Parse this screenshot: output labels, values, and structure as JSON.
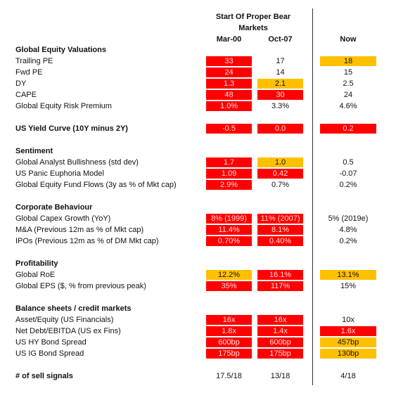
{
  "header": {
    "title": "Start Of Proper Bear Markets",
    "columns": [
      "Mar-00",
      "Oct-07",
      "Now"
    ]
  },
  "colors": {
    "red": "#ff0000",
    "amber": "#ffc000"
  },
  "sections": [
    {
      "title": "Global Equity Valuations",
      "rows": [
        {
          "label": "Trailing PE",
          "cells": [
            {
              "text": "33",
              "color": "red"
            },
            {
              "text": "17"
            },
            {
              "text": "18",
              "color": "amber"
            }
          ]
        },
        {
          "label": "Fwd PE",
          "cells": [
            {
              "text": "24",
              "color": "red"
            },
            {
              "text": "14"
            },
            {
              "text": "15"
            }
          ]
        },
        {
          "label": "DY",
          "cells": [
            {
              "text": "1.3",
              "color": "red"
            },
            {
              "text": "2.1",
              "color": "amber"
            },
            {
              "text": "2.5"
            }
          ]
        },
        {
          "label": "CAPE",
          "cells": [
            {
              "text": "48",
              "color": "red"
            },
            {
              "text": "30",
              "color": "red"
            },
            {
              "text": "24"
            }
          ]
        },
        {
          "label": "Global Equity Risk Premium",
          "cells": [
            {
              "text": "1.0%",
              "color": "red"
            },
            {
              "text": "3.3%"
            },
            {
              "text": "4.6%"
            }
          ]
        }
      ]
    },
    {
      "title": "US Yield Curve (10Y minus 2Y)",
      "cells": [
        {
          "text": "-0.5",
          "color": "red"
        },
        {
          "text": "0.0",
          "color": "red"
        },
        {
          "text": "0.2",
          "color": "red"
        }
      ]
    },
    {
      "title": "Sentiment",
      "rows": [
        {
          "label": "Global Analyst Bullishness (std dev)",
          "cells": [
            {
              "text": "1.7",
              "color": "red"
            },
            {
              "text": "1.0",
              "color": "amber"
            },
            {
              "text": "0.5"
            }
          ]
        },
        {
          "label": "US Panic Euphoria Model",
          "cells": [
            {
              "text": "1.09",
              "color": "red"
            },
            {
              "text": "0.42",
              "color": "red"
            },
            {
              "text": "-0.07"
            }
          ]
        },
        {
          "label": "Global Equity Fund Flows (3y as % of Mkt cap)",
          "cells": [
            {
              "text": "2.9%",
              "color": "red"
            },
            {
              "text": "0.7%"
            },
            {
              "text": "0.2%"
            }
          ]
        }
      ]
    },
    {
      "title": "Corporate Behaviour",
      "rows": [
        {
          "label": "Global Capex Growth (YoY)",
          "cells": [
            {
              "text": "8% (1999)",
              "color": "red"
            },
            {
              "text": "11% (2007)",
              "color": "red"
            },
            {
              "text": "5% (2019e)"
            }
          ]
        },
        {
          "label": "M&A (Previous 12m as % of Mkt cap)",
          "cells": [
            {
              "text": "11.4%",
              "color": "red"
            },
            {
              "text": "8.1%",
              "color": "red"
            },
            {
              "text": "4.8%"
            }
          ]
        },
        {
          "label": "IPOs (Previous 12m as % of DM Mkt cap)",
          "cells": [
            {
              "text": "0.70%",
              "color": "red"
            },
            {
              "text": "0.40%",
              "color": "red"
            },
            {
              "text": "0.2%"
            }
          ]
        }
      ]
    },
    {
      "title": "Profitability",
      "rows": [
        {
          "label": "Global RoE",
          "cells": [
            {
              "text": "12.2%",
              "color": "amber"
            },
            {
              "text": "16.1%",
              "color": "red"
            },
            {
              "text": "13.1%",
              "color": "amber"
            }
          ]
        },
        {
          "label": "Global EPS  ($, % from previous peak)",
          "cells": [
            {
              "text": "35%",
              "color": "red"
            },
            {
              "text": "117%",
              "color": "red"
            },
            {
              "text": "15%"
            }
          ]
        }
      ]
    },
    {
      "title": "Balance sheets / credit markets",
      "rows": [
        {
          "label": "Asset/Equity (US Financials)",
          "cells": [
            {
              "text": "16x",
              "color": "red"
            },
            {
              "text": "16x",
              "color": "red"
            },
            {
              "text": "10x"
            }
          ]
        },
        {
          "label": "Net Debt/EBITDA (US ex Fins)",
          "cells": [
            {
              "text": "1.8x",
              "color": "red"
            },
            {
              "text": "1.4x",
              "color": "red"
            },
            {
              "text": "1.6x",
              "color": "red"
            }
          ]
        },
        {
          "label": "US HY Bond Spread",
          "cells": [
            {
              "text": "600bp",
              "color": "red"
            },
            {
              "text": "600bp",
              "color": "red"
            },
            {
              "text": "457bp",
              "color": "amber"
            }
          ]
        },
        {
          "label": "US IG Bond Spread",
          "cells": [
            {
              "text": "175bp",
              "color": "red"
            },
            {
              "text": "175bp",
              "color": "red"
            },
            {
              "text": "130bp",
              "color": "amber"
            }
          ]
        }
      ]
    },
    {
      "title": "# of sell signals",
      "cells": [
        {
          "text": "17.5/18"
        },
        {
          "text": "13/18"
        },
        {
          "text": "4/18"
        }
      ]
    }
  ]
}
